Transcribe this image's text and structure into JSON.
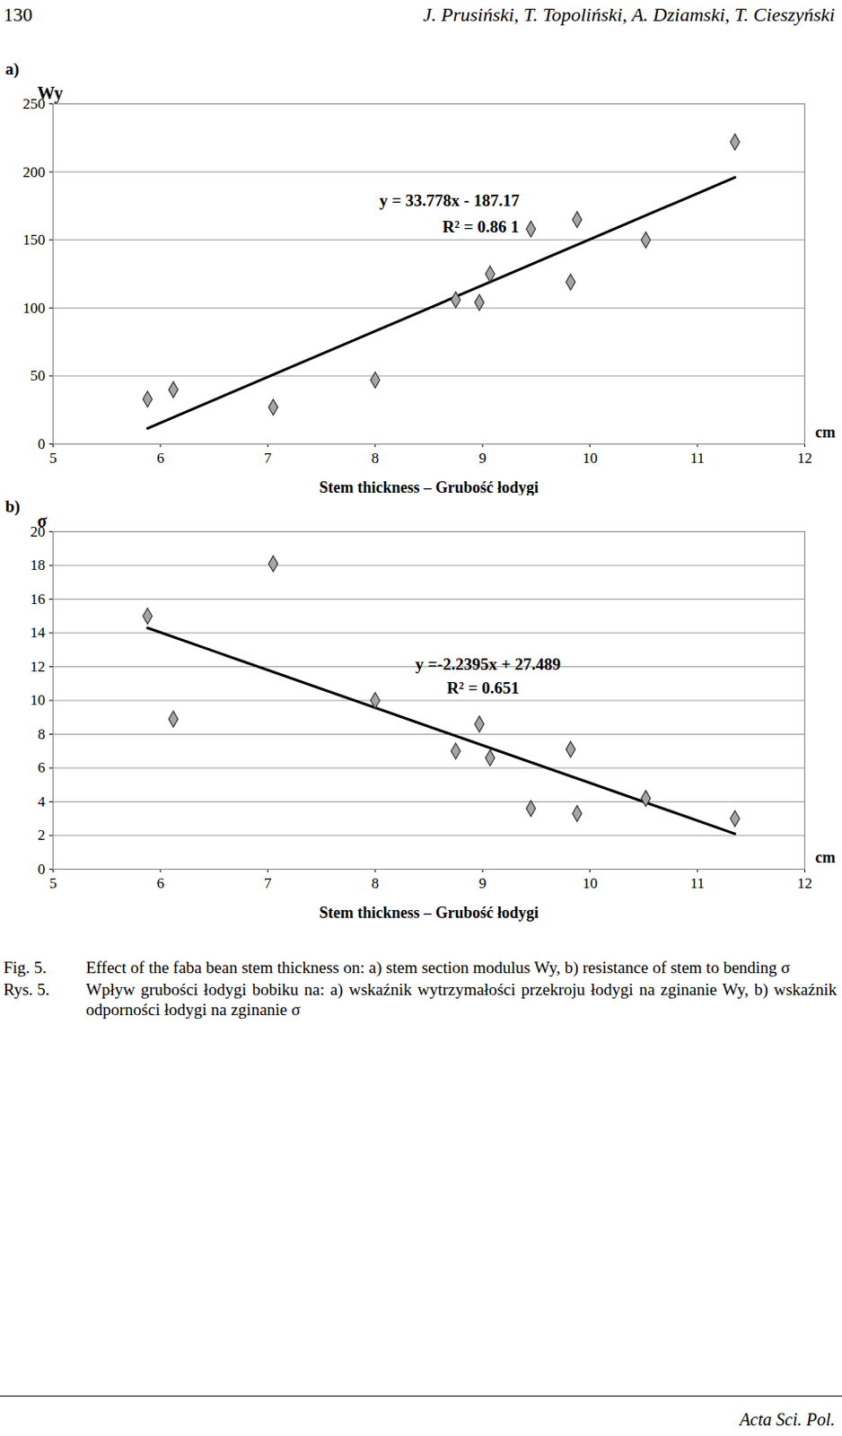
{
  "header": {
    "page": "130",
    "authors": "J. Prusiński, T. Topoliński, A. Dziamski, T. Cieszyński"
  },
  "chart_data": [
    {
      "type": "scatter",
      "panel": "a)",
      "x_label": "Stem thickness – Grubość łodygi",
      "x_unit": "cm",
      "y_label": "Wy",
      "x": [
        5.88,
        6.12,
        7.05,
        8.0,
        8.75,
        8.97,
        9.07,
        9.45,
        9.82,
        9.88,
        10.52,
        11.35
      ],
      "values": [
        33,
        40,
        27,
        47,
        106,
        104,
        125,
        158,
        119,
        165,
        150,
        222
      ],
      "trendline": {
        "x": [
          5.88,
          11.35
        ],
        "values": [
          11.5,
          196
        ]
      },
      "annotations": [
        "y = 33.778x - 187.17",
        "R² = 0.86 1"
      ],
      "xlim": [
        5,
        12
      ],
      "xticks": [
        5,
        6,
        7,
        8,
        9,
        10,
        11,
        12
      ],
      "ylim": [
        0,
        250
      ],
      "yticks": [
        0,
        50,
        100,
        150,
        200,
        250
      ],
      "grid": true,
      "marker": "diamond",
      "color": "#a6a6a6"
    },
    {
      "type": "scatter",
      "panel": "b)",
      "x_label": "Stem thickness – Grubość łodygi",
      "x_unit": "cm",
      "y_label": "σ",
      "x": [
        5.88,
        6.12,
        7.05,
        8.0,
        8.75,
        8.97,
        9.07,
        9.45,
        9.82,
        9.88,
        10.52,
        11.35
      ],
      "values": [
        15,
        8.9,
        18.1,
        10,
        7,
        8.6,
        6.6,
        3.6,
        7.1,
        3.3,
        4.2,
        3.0
      ],
      "trendline": {
        "x": [
          5.88,
          11.35
        ],
        "values": [
          14.3,
          2.1
        ]
      },
      "annotations": [
        "y =-2.2395x + 27.489",
        "R² = 0.651"
      ],
      "xlim": [
        5,
        12
      ],
      "xticks": [
        5,
        6,
        7,
        8,
        9,
        10,
        11,
        12
      ],
      "ylim": [
        0,
        20
      ],
      "yticks": [
        0,
        2,
        4,
        6,
        8,
        10,
        12,
        14,
        16,
        18,
        20
      ],
      "grid": true,
      "marker": "diamond",
      "color": "#a6a6a6"
    }
  ],
  "caption": [
    {
      "label": "Fig. 5.",
      "text": "Effect of the faba bean stem thickness on: a) stem section modulus Wy, b) resistance of stem to bending σ"
    },
    {
      "label": "Rys. 5.",
      "text": "Wpływ grubości łodygi bobiku na: a) wskaźnik wytrzymałości przekroju łodygi na zginanie Wy, b) wskaźnik odporności łodygi na zginanie σ"
    }
  ],
  "footer": "Acta Sci. Pol."
}
